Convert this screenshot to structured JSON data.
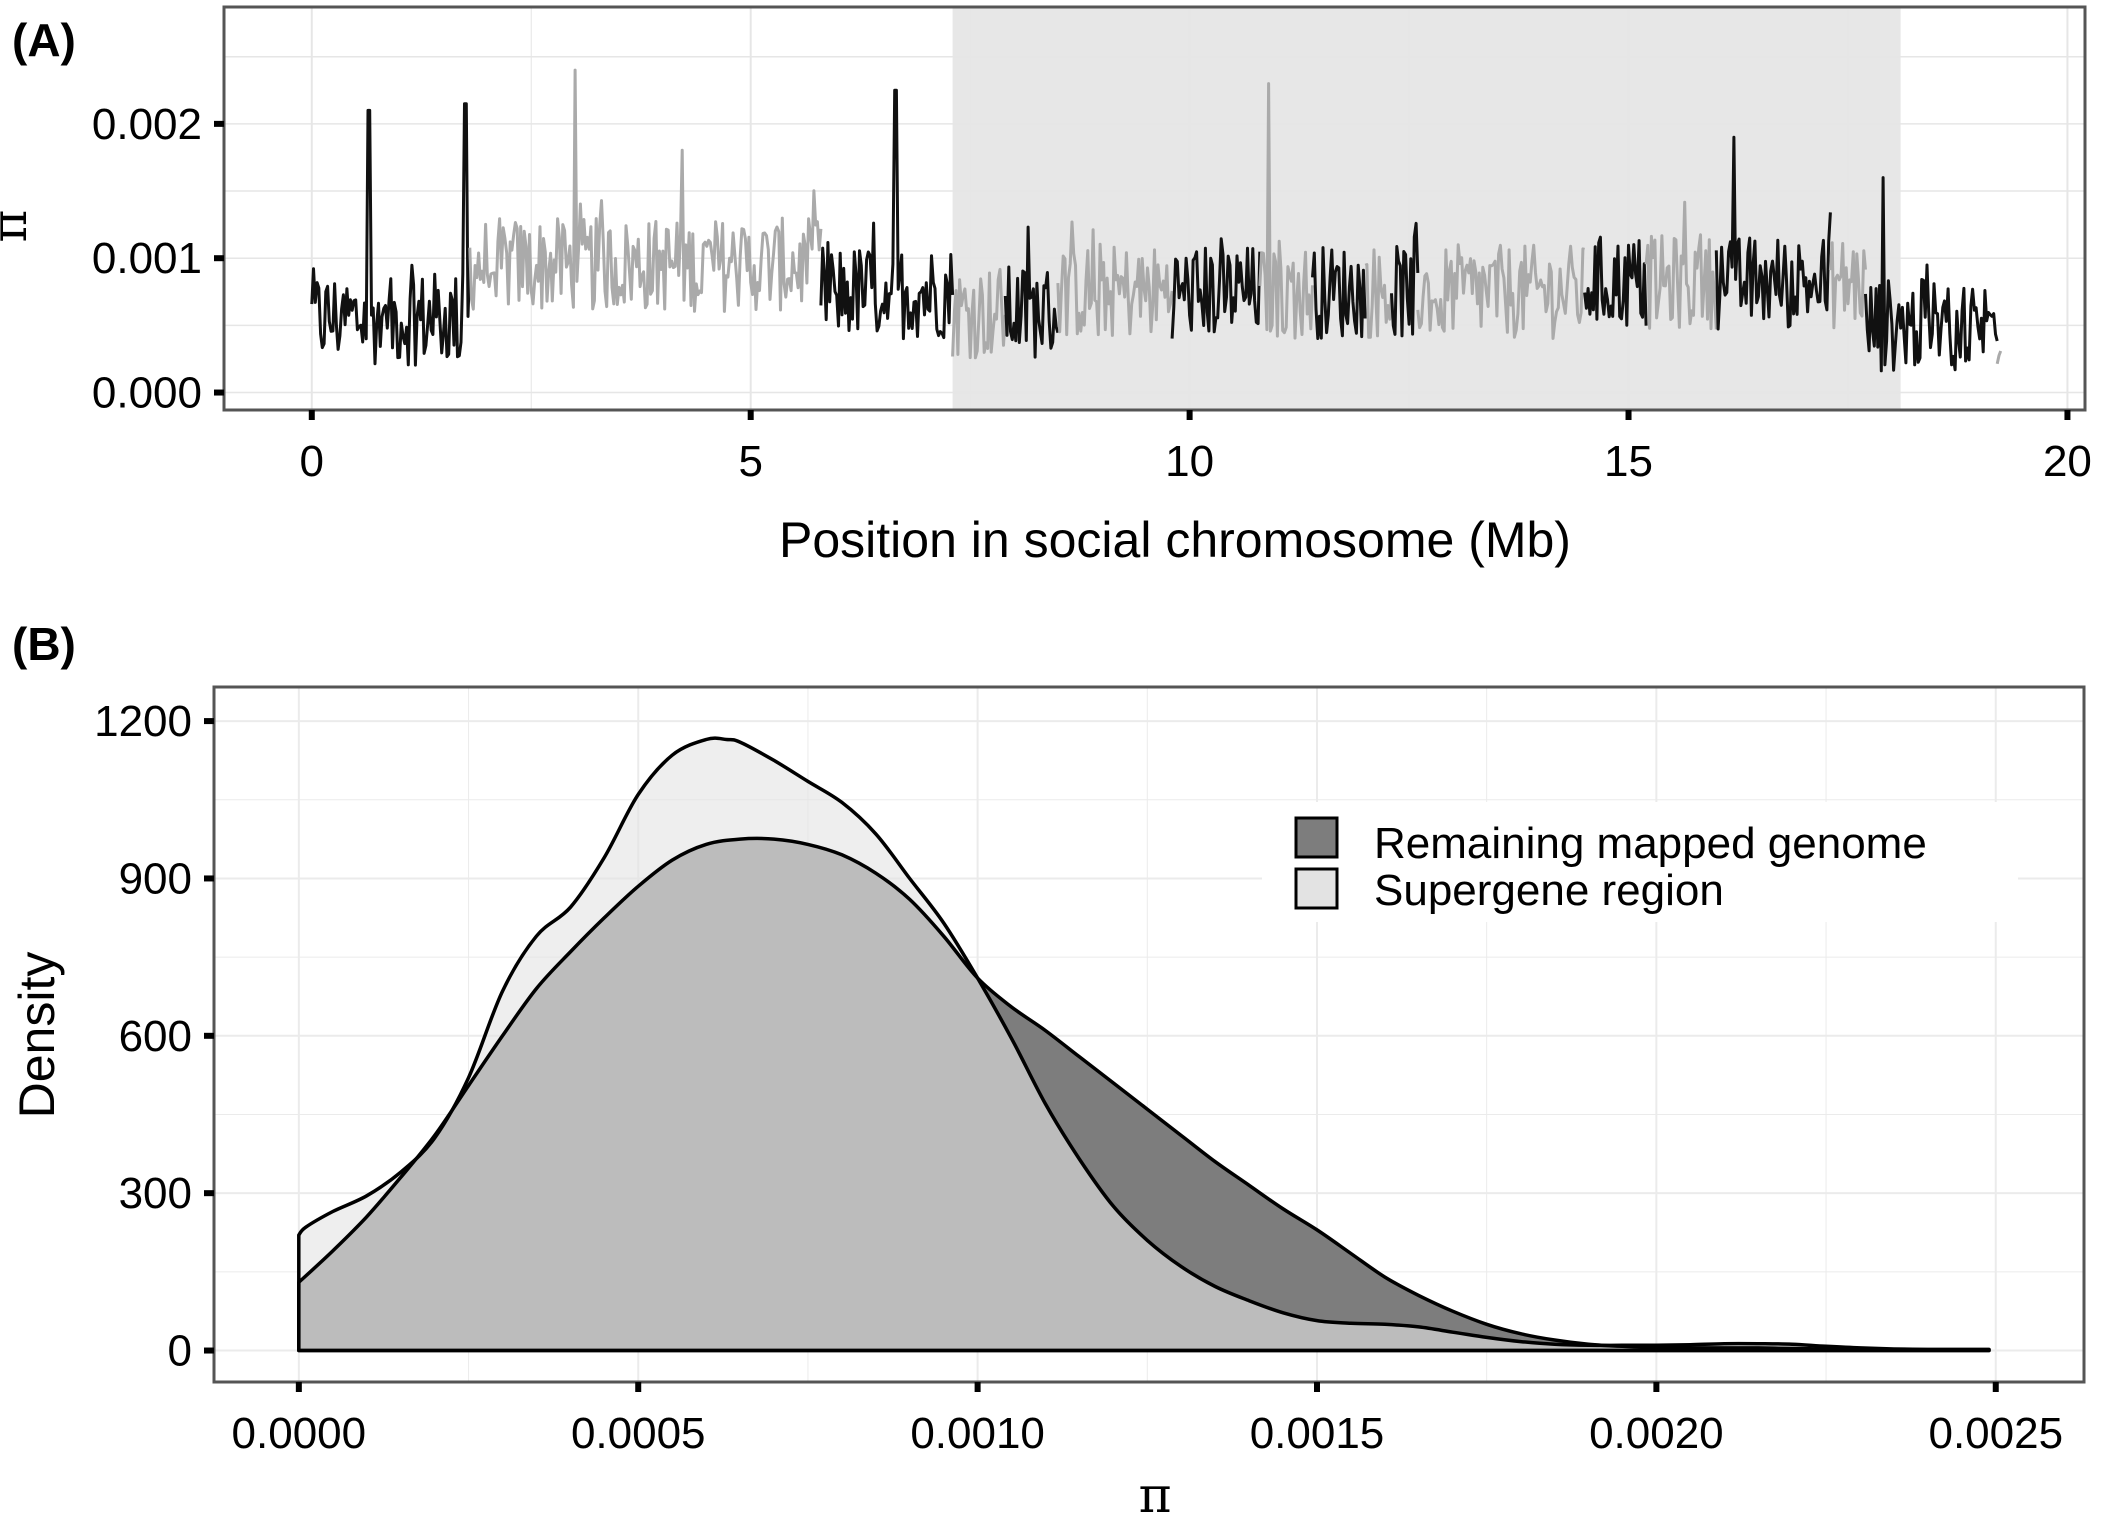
{
  "chart_data": [
    {
      "panel": "(A)",
      "type": "line",
      "xlabel": "Position in social chromosome (Mb)",
      "ylabel": "π",
      "xlim": [
        -1.0,
        20.2
      ],
      "ylim": [
        -0.00013,
        0.00287
      ],
      "xticks": [
        0,
        5,
        10,
        15,
        20
      ],
      "yticks": [
        0.0,
        0.001,
        0.002
      ],
      "ytick_labels": [
        "0.000",
        "0.001",
        "0.002"
      ],
      "grid": true,
      "highlight_region": {
        "x": [
          7.3,
          18.1
        ],
        "color": "#e7e7e7"
      },
      "segment_colors": {
        "dark": "#111111",
        "light": "#aaaaaa"
      },
      "segments": [
        {
          "x": [
            0.0,
            1.8
          ],
          "color": "dark"
        },
        {
          "x": [
            1.8,
            5.8
          ],
          "color": "light"
        },
        {
          "x": [
            5.8,
            7.3
          ],
          "color": "dark"
        },
        {
          "x": [
            7.3,
            7.9
          ],
          "color": "light"
        },
        {
          "x": [
            7.9,
            8.5
          ],
          "color": "dark"
        },
        {
          "x": [
            8.5,
            9.8
          ],
          "color": "light"
        },
        {
          "x": [
            9.8,
            10.8
          ],
          "color": "dark"
        },
        {
          "x": [
            10.8,
            11.4
          ],
          "color": "light"
        },
        {
          "x": [
            11.4,
            12.0
          ],
          "color": "dark"
        },
        {
          "x": [
            12.0,
            12.3
          ],
          "color": "light"
        },
        {
          "x": [
            12.3,
            12.6
          ],
          "color": "dark"
        },
        {
          "x": [
            12.6,
            14.5
          ],
          "color": "light"
        },
        {
          "x": [
            14.5,
            15.2
          ],
          "color": "dark"
        },
        {
          "x": [
            15.2,
            16.0
          ],
          "color": "light"
        },
        {
          "x": [
            16.0,
            17.3
          ],
          "color": "dark"
        },
        {
          "x": [
            17.3,
            17.7
          ],
          "color": "light"
        },
        {
          "x": [
            17.7,
            19.2
          ],
          "color": "dark"
        },
        {
          "x": [
            19.2,
            19.25
          ],
          "color": "light"
        }
      ],
      "peaks": [
        {
          "x": 0.65,
          "y": 0.0021
        },
        {
          "x": 1.75,
          "y": 0.00215
        },
        {
          "x": 3.0,
          "y": 0.0025
        },
        {
          "x": 6.65,
          "y": 0.00225
        },
        {
          "x": 10.9,
          "y": 0.0023
        },
        {
          "x": 16.2,
          "y": 0.0019
        },
        {
          "x": 17.9,
          "y": 0.0016
        }
      ]
    },
    {
      "panel": "(B)",
      "type": "area",
      "xlabel": "π",
      "ylabel": "Density",
      "xlim": [
        -0.000125,
        0.00263
      ],
      "ylim": [
        -60,
        1265
      ],
      "xticks": [
        0.0,
        0.0005,
        0.001,
        0.0015,
        0.002,
        0.0025
      ],
      "xtick_labels": [
        "0.0000",
        "0.0005",
        "0.0010",
        "0.0015",
        "0.0020",
        "0.0025"
      ],
      "yticks": [
        0,
        300,
        600,
        900,
        1200
      ],
      "ytick_labels": [
        "0",
        "300",
        "600",
        "900",
        "1200"
      ],
      "grid": true,
      "legend_position": "top-right",
      "series": [
        {
          "name": "Remaining mapped genome",
          "color": "#7d7d7d",
          "x": [
            0.0,
            5e-05,
            0.0001,
            0.00015,
            0.0002,
            0.00025,
            0.0003,
            0.00035,
            0.0004,
            0.00045,
            0.0005,
            0.00055,
            0.0006,
            0.00065,
            0.0007,
            0.00075,
            0.0008,
            0.00085,
            0.0009,
            0.00095,
            0.001,
            0.00105,
            0.0011,
            0.00115,
            0.0012,
            0.00125,
            0.0013,
            0.00135,
            0.0014,
            0.00145,
            0.0015,
            0.00155,
            0.0016,
            0.00165,
            0.0017,
            0.00175,
            0.0018,
            0.00185,
            0.0019,
            0.00195,
            0.002,
            0.00205,
            0.0021,
            0.00215,
            0.0022,
            0.00225,
            0.0023,
            0.00235,
            0.0024,
            0.00245,
            0.00249
          ],
          "y": [
            130,
            190,
            255,
            330,
            410,
            505,
            600,
            690,
            760,
            825,
            885,
            935,
            965,
            975,
            975,
            965,
            945,
            910,
            860,
            790,
            710,
            655,
            610,
            560,
            510,
            460,
            410,
            360,
            315,
            270,
            230,
            185,
            140,
            105,
            75,
            50,
            32,
            20,
            12,
            8,
            6,
            5,
            5,
            5,
            4,
            3,
            2,
            2,
            2,
            2,
            2
          ]
        },
        {
          "name": "Supergene region",
          "color": "#e3e3e3",
          "x": [
            0.0,
            1e-05,
            5e-05,
            0.0001,
            0.00015,
            0.0002,
            0.00025,
            0.0003,
            0.00035,
            0.0004,
            0.00045,
            0.0005,
            0.00055,
            0.0006,
            0.00063,
            0.00065,
            0.0007,
            0.00075,
            0.0008,
            0.00085,
            0.0009,
            0.00095,
            0.001,
            0.00105,
            0.0011,
            0.00115,
            0.0012,
            0.00125,
            0.0013,
            0.00135,
            0.0014,
            0.00145,
            0.0015,
            0.00155,
            0.0016,
            0.00165,
            0.0017,
            0.00175,
            0.0018,
            0.00185,
            0.0019,
            0.00195,
            0.002,
            0.00205,
            0.0021,
            0.00215,
            0.0022,
            0.00225,
            0.0023,
            0.00235,
            0.0024,
            0.00245,
            0.00249
          ],
          "y": [
            220,
            235,
            265,
            295,
            340,
            405,
            520,
            685,
            790,
            845,
            940,
            1060,
            1135,
            1165,
            1165,
            1160,
            1125,
            1085,
            1045,
            985,
            900,
            815,
            710,
            595,
            470,
            365,
            275,
            210,
            160,
            122,
            95,
            72,
            57,
            52,
            50,
            45,
            35,
            25,
            17,
            12,
            10,
            10,
            10,
            11,
            13,
            13,
            12,
            8,
            5,
            3,
            2,
            2,
            2
          ]
        }
      ]
    }
  ]
}
